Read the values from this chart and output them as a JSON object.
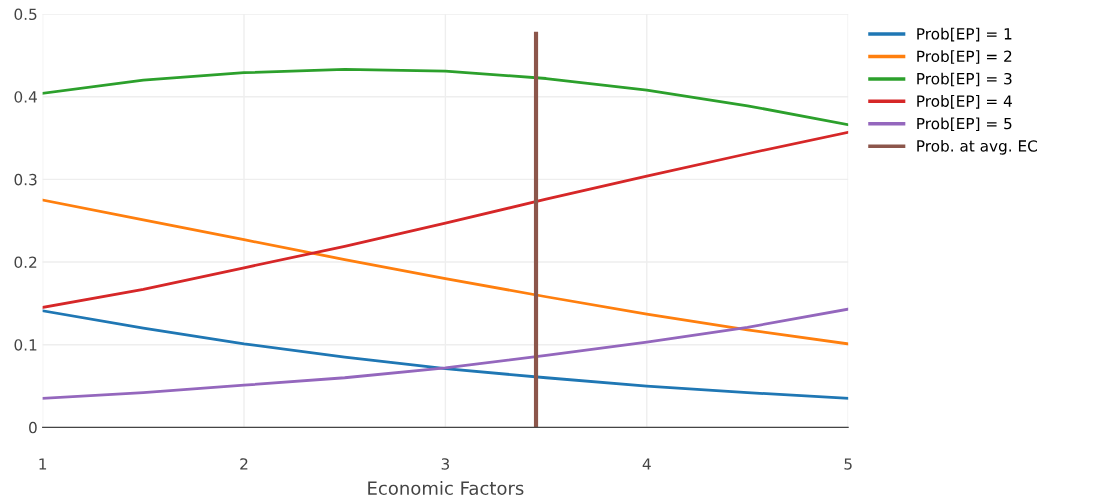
{
  "chart_data": {
    "type": "line",
    "xlabel": "Economic Factors",
    "xlim": [
      1,
      5
    ],
    "xticks": [
      1,
      2,
      3,
      4,
      5
    ],
    "ylim": [
      0,
      0.5
    ],
    "yticks": [
      0,
      0.1,
      0.2,
      0.3,
      0.4,
      0.5
    ],
    "grid": true,
    "legend": "top right",
    "marker": "none",
    "line_style": "solid",
    "x": [
      1,
      1.5,
      2,
      2.5,
      3,
      3.5,
      4,
      4.5,
      5
    ],
    "series": [
      {
        "name": "Prob[EP] = 1",
        "color": "#1f77b4",
        "values": [
          0.141,
          0.12,
          0.101,
          0.085,
          0.071,
          0.06,
          0.05,
          0.042,
          0.035
        ]
      },
      {
        "name": "Prob[EP] = 2",
        "color": "#ff7f0e",
        "values": [
          0.275,
          0.251,
          0.227,
          0.203,
          0.18,
          0.158,
          0.137,
          0.118,
          0.101
        ]
      },
      {
        "name": "Prob[EP] = 3",
        "color": "#2ca02c",
        "values": [
          0.404,
          0.42,
          0.429,
          0.433,
          0.431,
          0.422,
          0.408,
          0.389,
          0.366
        ]
      },
      {
        "name": "Prob[EP] = 4",
        "color": "#d62728",
        "values": [
          0.145,
          0.167,
          0.193,
          0.219,
          0.247,
          0.276,
          0.304,
          0.331,
          0.357
        ]
      },
      {
        "name": "Prob[EP] = 5",
        "color": "#9467bd",
        "values": [
          0.035,
          0.042,
          0.051,
          0.06,
          0.072,
          0.087,
          0.103,
          0.121,
          0.143
        ]
      },
      {
        "name": "Prob. at avg. EC",
        "color": "#8c564b",
        "x": [
          3.45,
          3.45
        ],
        "values": [
          0,
          0.476
        ]
      }
    ]
  }
}
